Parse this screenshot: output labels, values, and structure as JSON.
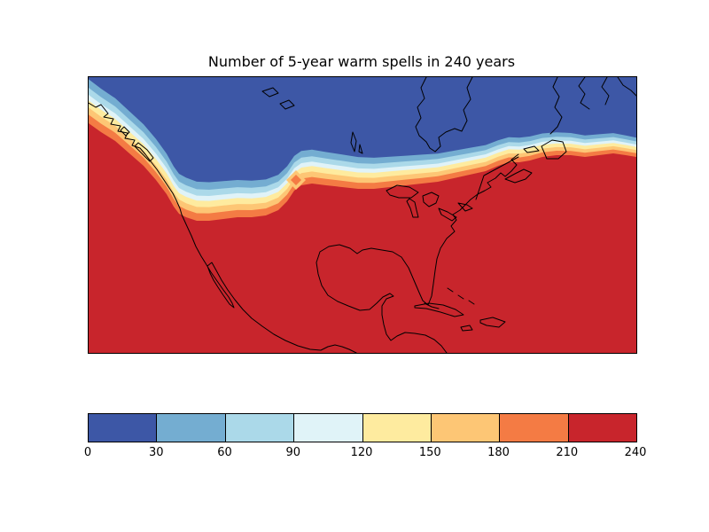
{
  "figure": {
    "title": "Number of 5-year warm spells in 240 years",
    "background_color": "#ffffff",
    "outline_color": "#000000"
  },
  "chart_data": {
    "type": "heatmap",
    "subtype": "filled-contour-map",
    "title": "Number of 5-year warm spells in 240 years",
    "region": "North America",
    "value_range": [
      0,
      240
    ],
    "levels": [
      0,
      30,
      60,
      90,
      120,
      150,
      180,
      210,
      240
    ],
    "colors": [
      "#3d57a6",
      "#74add1",
      "#abd9e9",
      "#e0f3f8",
      "#feeb9f",
      "#fdc675",
      "#f47b44",
      "#c8252c"
    ],
    "coastline_color": "#000000",
    "grid": false,
    "legend_position": "none",
    "colorbar": {
      "orientation": "horizontal",
      "position": "bottom",
      "ticks": [
        0,
        30,
        60,
        90,
        120,
        150,
        180,
        210,
        240
      ],
      "tick_labels": [
        "0",
        "30",
        "60",
        "90",
        "120",
        "150",
        "180",
        "210",
        "240"
      ]
    },
    "regions": [
      {
        "area": "northern (Canada, high latitudes)",
        "value_bin": "0-30",
        "color": "#3d57a6"
      },
      {
        "area": "sharp east-west transition band near ~50N, dipping south over the Rockies and hugging the Pacific coast in the northwest",
        "value_bin": "30-210"
      },
      {
        "area": "isolated warm spot in transition band over the northern plains",
        "value_bin": "150-210"
      },
      {
        "area": "southern (USA, Mexico, Gulf, Atlantic)",
        "value_bin": "210-240",
        "color": "#c8252c"
      }
    ]
  }
}
